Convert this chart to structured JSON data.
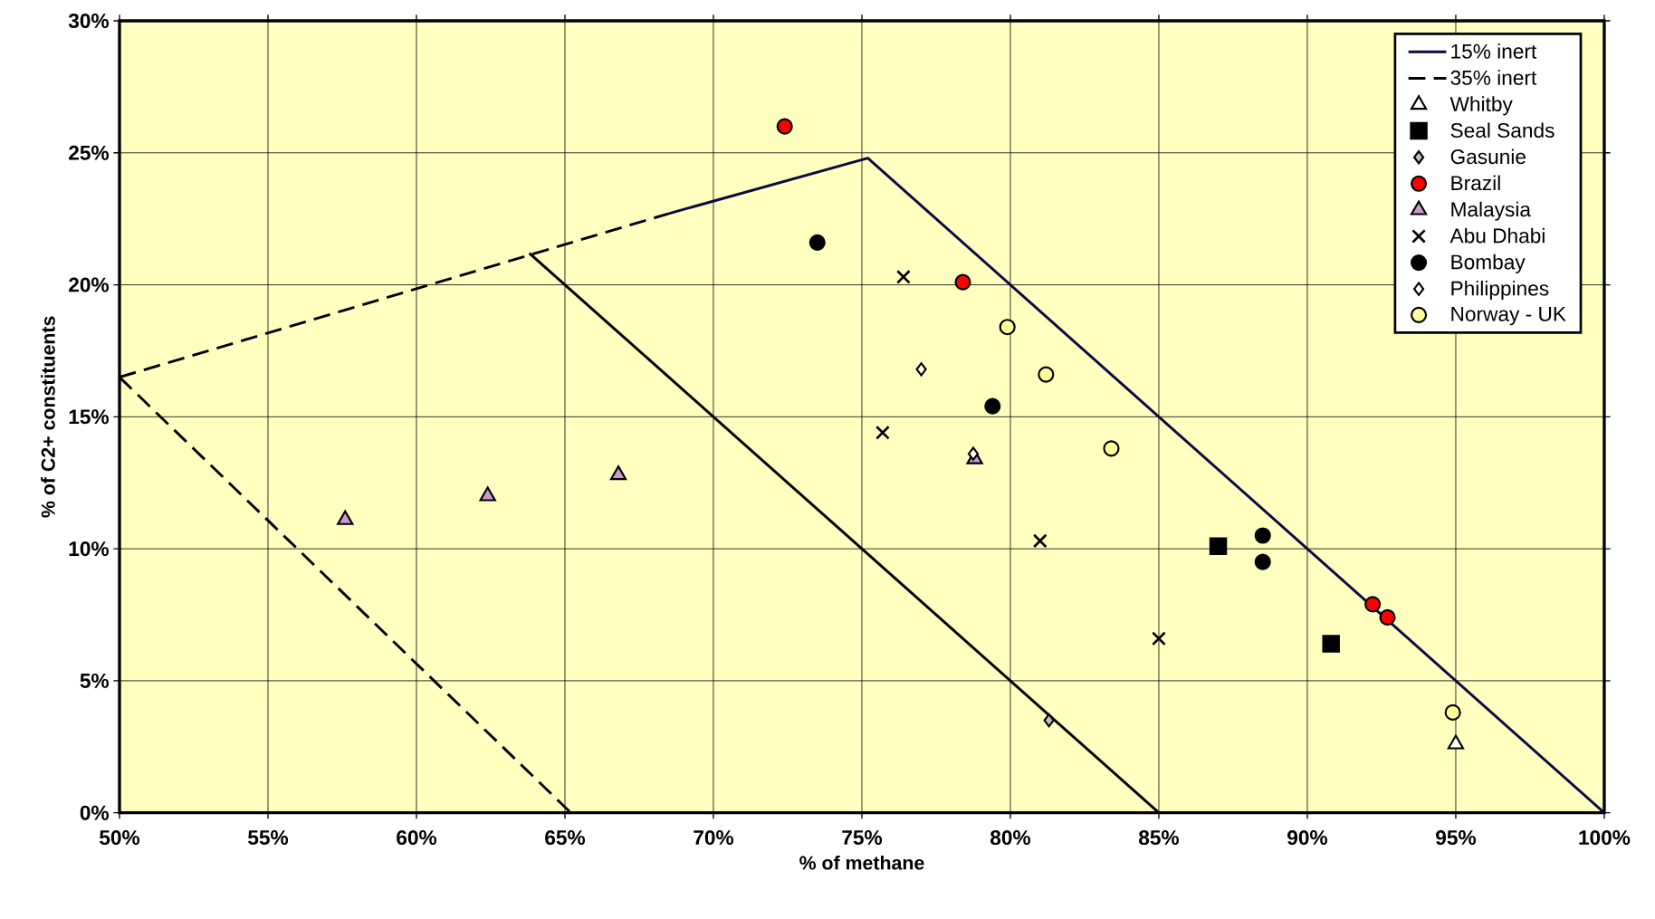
{
  "chart_data": {
    "type": "scatter",
    "xlabel": "% of methane",
    "ylabel": "% of C2+ constituents",
    "xlim": [
      50,
      100
    ],
    "ylim": [
      0,
      30
    ],
    "xticks": [
      {
        "value": 50,
        "label": "50%"
      },
      {
        "value": 55,
        "label": "55%"
      },
      {
        "value": 60,
        "label": "60%"
      },
      {
        "value": 65,
        "label": "65%"
      },
      {
        "value": 70,
        "label": "70%"
      },
      {
        "value": 75,
        "label": "75%"
      },
      {
        "value": 80,
        "label": "80%"
      },
      {
        "value": 85,
        "label": "85%"
      },
      {
        "value": 90,
        "label": "90%"
      },
      {
        "value": 95,
        "label": "95%"
      },
      {
        "value": 100,
        "label": "100%"
      }
    ],
    "yticks": [
      {
        "value": 0,
        "label": "0%"
      },
      {
        "value": 5,
        "label": "5%"
      },
      {
        "value": 10,
        "label": "10%"
      },
      {
        "value": 15,
        "label": "15%"
      },
      {
        "value": 20,
        "label": "20%"
      },
      {
        "value": 25,
        "label": "25%"
      },
      {
        "value": 30,
        "label": "30%"
      }
    ],
    "grid": true,
    "legend": "top right",
    "series": [
      {
        "name": "15% inert",
        "type": "line",
        "line_style": "solid",
        "marker": "none",
        "color": "#0a0a40",
        "x": [
          68.5,
          75.2,
          100
        ],
        "values": [
          22.7,
          24.8,
          0
        ]
      },
      {
        "name": "35% inert",
        "type": "line",
        "line_style": "dashed",
        "marker": "none",
        "color": "#000000",
        "x": [
          50,
          68.5
        ],
        "values": [
          16.5,
          22.7
        ]
      },
      {
        "type": "line",
        "line_style": "solid",
        "marker": "none",
        "color": "#000000",
        "x": [
          63.8,
          85
        ],
        "values": [
          21.2,
          0
        ]
      },
      {
        "type": "line",
        "line_style": "dashed",
        "marker": "none",
        "color": "#000000",
        "x": [
          50,
          65.2
        ],
        "values": [
          16.5,
          0
        ]
      },
      {
        "name": "Whitby",
        "marker": "triangle",
        "color": "#ffffff",
        "x": [
          95.0
        ],
        "values": [
          2.6
        ]
      },
      {
        "name": "Seal Sands",
        "marker": "square",
        "color": "#000000",
        "x": [
          87.0,
          90.8
        ],
        "values": [
          10.1,
          6.4
        ]
      },
      {
        "name": "Gasunie",
        "marker": "diamond",
        "color": "#c0c0c0",
        "x": [
          81.3
        ],
        "values": [
          3.5
        ]
      },
      {
        "name": "Brazil",
        "marker": "circle",
        "color": "#ff0000",
        "x": [
          72.4,
          78.4,
          92.2,
          92.7
        ],
        "values": [
          26.0,
          20.1,
          7.9,
          7.4
        ]
      },
      {
        "name": "Malaysia",
        "marker": "triangle",
        "color": "#cc99cc",
        "x": [
          57.6,
          62.4,
          66.8,
          78.8
        ],
        "values": [
          11.1,
          12.0,
          12.8,
          13.4
        ]
      },
      {
        "name": "Abu Dhabi",
        "marker": "cross",
        "color": "#000000",
        "x": [
          76.4,
          75.7,
          81.0,
          85.0
        ],
        "values": [
          20.3,
          14.4,
          10.3,
          6.6
        ]
      },
      {
        "name": "Bombay",
        "marker": "circle",
        "color": "#000000",
        "x": [
          73.5,
          79.4,
          88.5,
          88.5
        ],
        "values": [
          21.6,
          15.4,
          10.5,
          9.5
        ]
      },
      {
        "name": "Philippines",
        "marker": "diamond",
        "color": "#ffffff",
        "x": [
          77.0,
          78.75
        ],
        "values": [
          16.8,
          13.6
        ]
      },
      {
        "name": "Norway - UK",
        "marker": "circle",
        "color": "#ffff99",
        "x": [
          79.9,
          81.2,
          83.4,
          94.9
        ],
        "values": [
          18.4,
          16.6,
          13.8,
          3.8
        ]
      }
    ]
  }
}
